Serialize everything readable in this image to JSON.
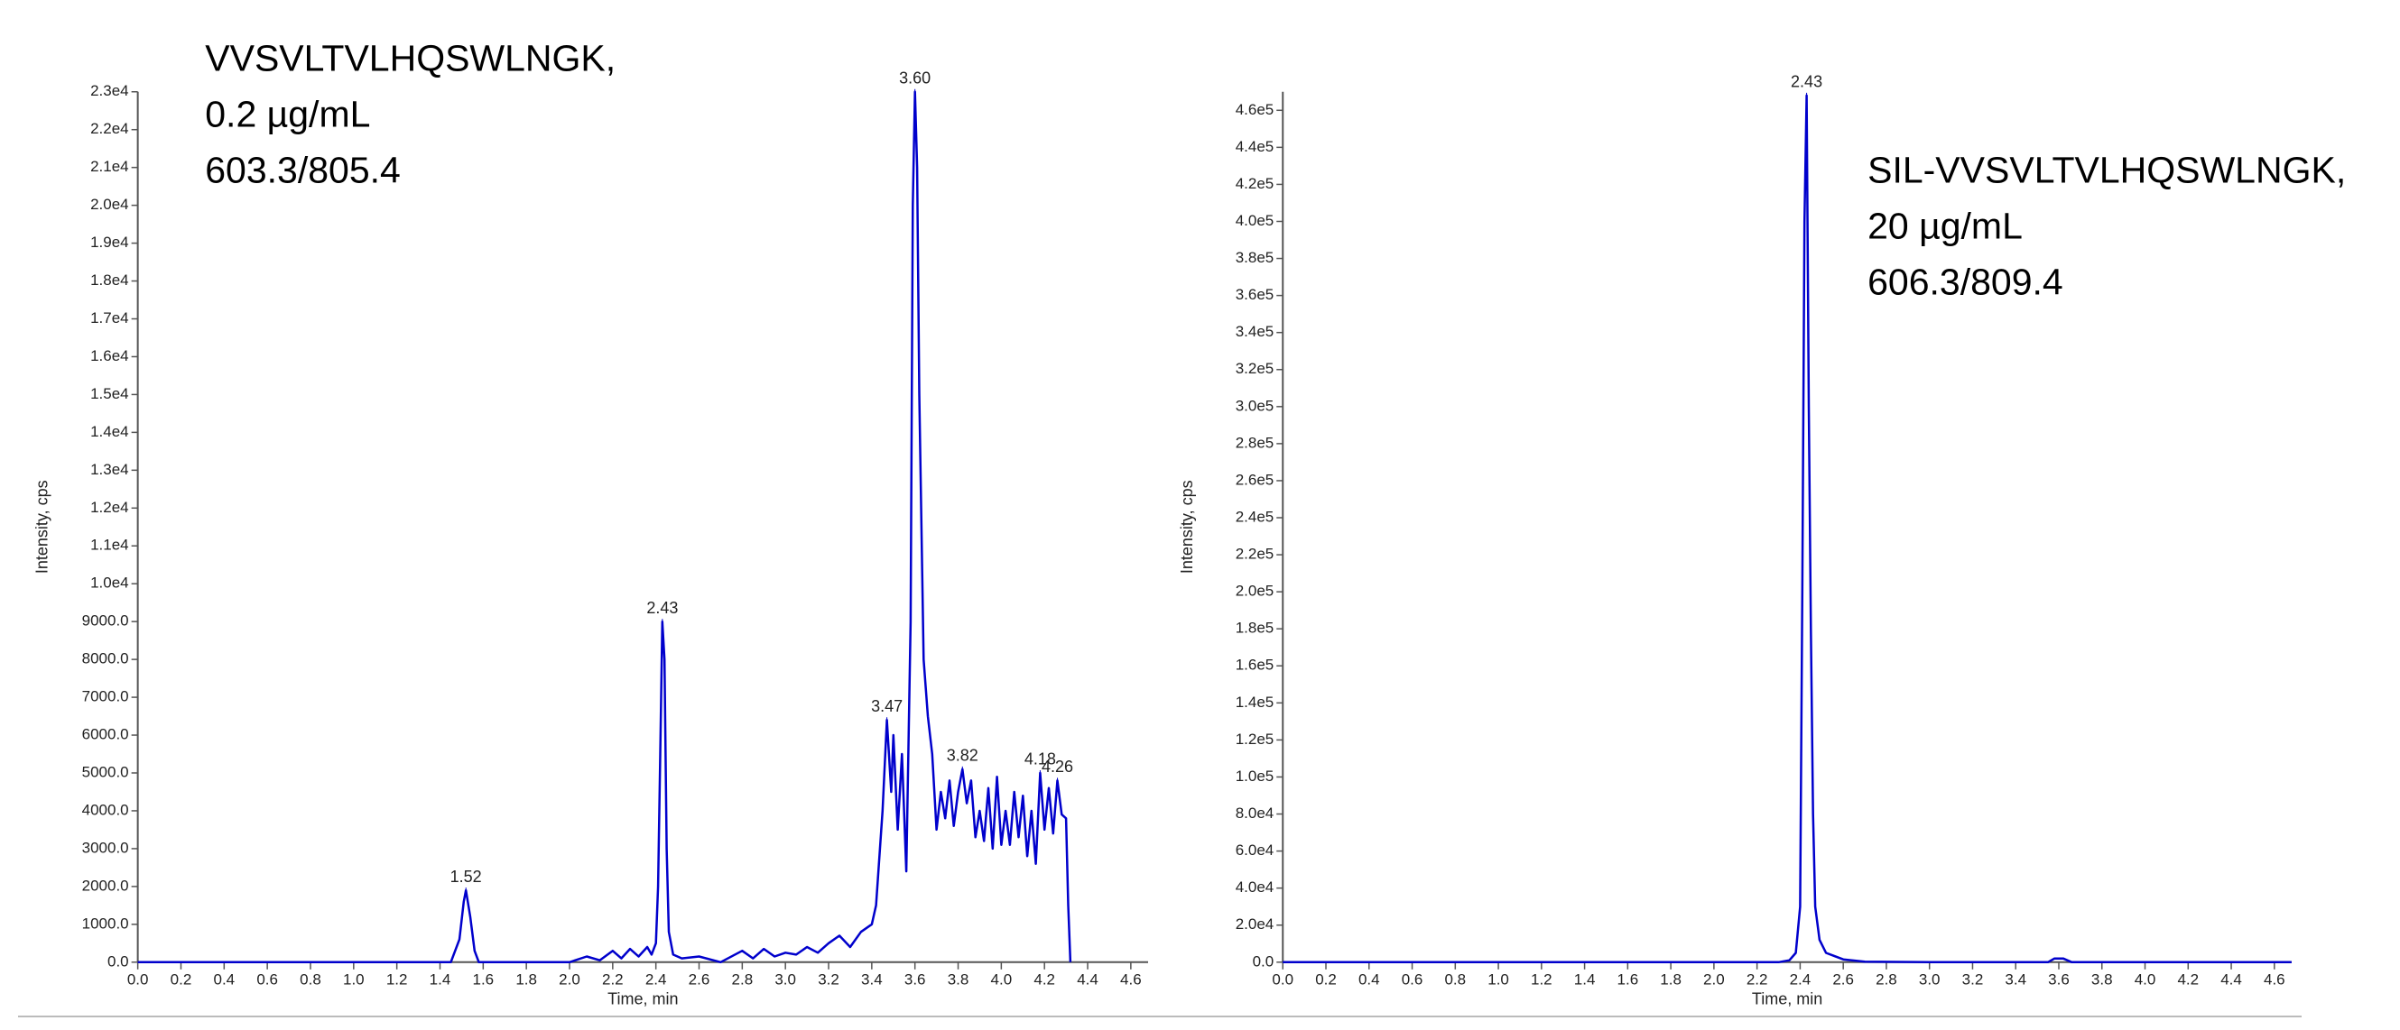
{
  "chart_data": [
    {
      "type": "line",
      "color": "#0000cc",
      "notes": [
        "VVSVLTVLHQSWLNGK,",
        "0.2 µg/mL",
        "603.3/805.4"
      ],
      "x_label": "Time, min",
      "y_label": "Intensity, cps",
      "xlim": [
        0,
        4.68
      ],
      "ylim": [
        0,
        23000
      ],
      "xticks": [
        {
          "value": 0,
          "label": "0.0"
        },
        0.2,
        0.4,
        0.6,
        0.8,
        {
          "value": 1,
          "label": "1.0"
        },
        1.2,
        1.4,
        1.6,
        1.8,
        {
          "value": 2,
          "label": "2.0"
        },
        2.2,
        2.4,
        2.6,
        2.8,
        {
          "value": 3,
          "label": "3.0"
        },
        3.2,
        3.4,
        3.6,
        3.8,
        {
          "value": 4,
          "label": "4.0"
        },
        4.2,
        4.4,
        4.6
      ],
      "yticks": [
        {
          "value": 0,
          "label": "0.0"
        },
        {
          "value": 1000,
          "label": "1000.0"
        },
        {
          "value": 2000,
          "label": "2000.0"
        },
        {
          "value": 3000,
          "label": "3000.0"
        },
        {
          "value": 4000,
          "label": "4000.0"
        },
        {
          "value": 5000,
          "label": "5000.0"
        },
        {
          "value": 6000,
          "label": "6000.0"
        },
        {
          "value": 7000,
          "label": "7000.0"
        },
        {
          "value": 8000,
          "label": "8000.0"
        },
        {
          "value": 9000,
          "label": "9000.0"
        },
        {
          "value": 10000,
          "label": "1.0e4"
        },
        {
          "value": 11000,
          "label": "1.1e4"
        },
        {
          "value": 12000,
          "label": "1.2e4"
        },
        {
          "value": 13000,
          "label": "1.3e4"
        },
        {
          "value": 14000,
          "label": "1.4e4"
        },
        {
          "value": 15000,
          "label": "1.5e4"
        },
        {
          "value": 16000,
          "label": "1.6e4"
        },
        {
          "value": 17000,
          "label": "1.7e4"
        },
        {
          "value": 18000,
          "label": "1.8e4"
        },
        {
          "value": 19000,
          "label": "1.9e4"
        },
        {
          "value": 20000,
          "label": "2.0e4"
        },
        {
          "value": 21000,
          "label": "2.1e4"
        },
        {
          "value": 22000,
          "label": "2.2e4"
        },
        {
          "value": 23000,
          "label": "2.3e4"
        }
      ],
      "x": [
        0,
        1.45,
        1.49,
        1.51,
        1.52,
        1.54,
        1.56,
        1.58,
        2.0,
        2.08,
        2.14,
        2.2,
        2.24,
        2.28,
        2.32,
        2.36,
        2.38,
        2.4,
        2.41,
        2.42,
        2.43,
        2.44,
        2.45,
        2.46,
        2.48,
        2.52,
        2.6,
        2.7,
        2.8,
        2.85,
        2.9,
        2.95,
        3.0,
        3.05,
        3.1,
        3.15,
        3.2,
        3.25,
        3.3,
        3.35,
        3.4,
        3.42,
        3.45,
        3.47,
        3.49,
        3.5,
        3.52,
        3.54,
        3.56,
        3.58,
        3.59,
        3.6,
        3.61,
        3.62,
        3.64,
        3.66,
        3.68,
        3.7,
        3.72,
        3.74,
        3.76,
        3.78,
        3.8,
        3.82,
        3.84,
        3.86,
        3.88,
        3.9,
        3.92,
        3.94,
        3.96,
        3.98,
        4.0,
        4.02,
        4.04,
        4.06,
        4.08,
        4.1,
        4.12,
        4.14,
        4.16,
        4.18,
        4.2,
        4.22,
        4.24,
        4.26,
        4.28,
        4.3,
        4.31,
        4.32
      ],
      "values": [
        0,
        0,
        600,
        1600,
        1900,
        1200,
        300,
        0,
        0,
        150,
        50,
        300,
        100,
        350,
        150,
        400,
        200,
        500,
        2000,
        5500,
        9000,
        8000,
        3000,
        800,
        200,
        100,
        150,
        0,
        300,
        100,
        350,
        150,
        250,
        200,
        400,
        250,
        500,
        700,
        400,
        800,
        1000,
        1500,
        4000,
        6400,
        4500,
        6000,
        3500,
        5500,
        2400,
        9000,
        20000,
        23000,
        21000,
        15000,
        8000,
        6500,
        5500,
        3500,
        4500,
        3800,
        4800,
        3600,
        4500,
        5100,
        4200,
        4800,
        3300,
        4000,
        3200,
        4600,
        3000,
        4900,
        3100,
        4000,
        3100,
        4500,
        3300,
        4400,
        2800,
        4000,
        2600,
        5000,
        3500,
        4600,
        3400,
        4800,
        3900,
        3800,
        1500,
        0
      ],
      "annotations": [
        {
          "label": "1.52",
          "x": 1.52,
          "y": 1900
        },
        {
          "label": "2.43",
          "x": 2.43,
          "y": 9000
        },
        {
          "label": "3.47",
          "x": 3.47,
          "y": 6400
        },
        {
          "label": "3.60",
          "x": 3.6,
          "y": 23000
        },
        {
          "label": "3.82",
          "x": 3.82,
          "y": 5100
        },
        {
          "label": "4.18",
          "x": 4.18,
          "y": 5000
        },
        {
          "label": "4.26",
          "x": 4.26,
          "y": 4800
        }
      ]
    },
    {
      "type": "line",
      "color": "#0000cc",
      "notes": [
        "SIL-VVSVLTVLHQSWLNGK,",
        "20 µg/mL",
        "606.3/809.4"
      ],
      "x_label": "Time, min",
      "y_label": "Intensity, cps",
      "xlim": [
        0,
        4.68
      ],
      "ylim": [
        0,
        470000
      ],
      "xticks": [
        {
          "value": 0,
          "label": "0.0"
        },
        0.2,
        0.4,
        0.6,
        0.8,
        {
          "value": 1,
          "label": "1.0"
        },
        1.2,
        1.4,
        1.6,
        1.8,
        {
          "value": 2,
          "label": "2.0"
        },
        2.2,
        2.4,
        2.6,
        2.8,
        {
          "value": 3,
          "label": "3.0"
        },
        3.2,
        3.4,
        3.6,
        3.8,
        {
          "value": 4,
          "label": "4.0"
        },
        4.2,
        4.4,
        4.6
      ],
      "yticks": [
        {
          "value": 0,
          "label": "0.0"
        },
        {
          "value": 20000,
          "label": "2.0e4"
        },
        {
          "value": 40000,
          "label": "4.0e4"
        },
        {
          "value": 60000,
          "label": "6.0e4"
        },
        {
          "value": 80000,
          "label": "8.0e4"
        },
        {
          "value": 100000,
          "label": "1.0e5"
        },
        {
          "value": 120000,
          "label": "1.2e5"
        },
        {
          "value": 140000,
          "label": "1.4e5"
        },
        {
          "value": 160000,
          "label": "1.6e5"
        },
        {
          "value": 180000,
          "label": "1.8e5"
        },
        {
          "value": 200000,
          "label": "2.0e5"
        },
        {
          "value": 220000,
          "label": "2.2e5"
        },
        {
          "value": 240000,
          "label": "2.4e5"
        },
        {
          "value": 260000,
          "label": "2.6e5"
        },
        {
          "value": 280000,
          "label": "2.8e5"
        },
        {
          "value": 300000,
          "label": "3.0e5"
        },
        {
          "value": 320000,
          "label": "3.2e5"
        },
        {
          "value": 340000,
          "label": "3.4e5"
        },
        {
          "value": 360000,
          "label": "3.6e5"
        },
        {
          "value": 380000,
          "label": "3.8e5"
        },
        {
          "value": 400000,
          "label": "4.0e5"
        },
        {
          "value": 420000,
          "label": "4.2e5"
        },
        {
          "value": 440000,
          "label": "4.4e5"
        },
        {
          "value": 460000,
          "label": "4.6e5"
        }
      ],
      "x": [
        0,
        2.3,
        2.35,
        2.38,
        2.4,
        2.41,
        2.42,
        2.43,
        2.44,
        2.45,
        2.46,
        2.47,
        2.49,
        2.52,
        2.6,
        2.7,
        3.0,
        3.55,
        3.58,
        3.62,
        3.66,
        4.68
      ],
      "values": [
        0,
        0,
        1000,
        5000,
        30000,
        200000,
        400000,
        468000,
        300000,
        180000,
        80000,
        30000,
        12000,
        5000,
        1500,
        300,
        0,
        0,
        2000,
        2000,
        0,
        0
      ],
      "annotations": [
        {
          "label": "2.43",
          "x": 2.43,
          "y": 468000
        }
      ]
    }
  ]
}
